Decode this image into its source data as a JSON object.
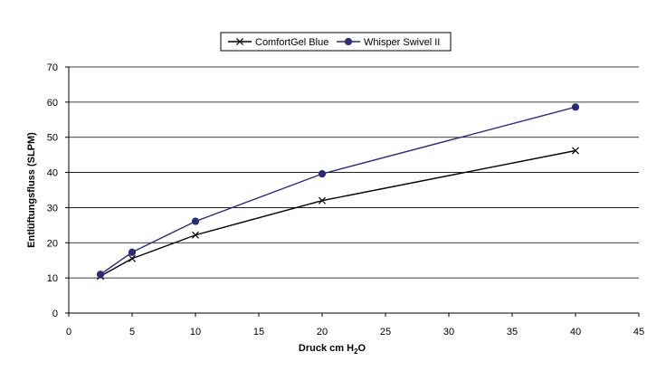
{
  "chart_data": {
    "type": "line",
    "title": "",
    "xlabel": "Druck cm H",
    "xlabel_subscript": "2",
    "xlabel_suffix": "O",
    "ylabel": "Entlüftungsfluss (SLPM)",
    "xlim": [
      0,
      45
    ],
    "ylim": [
      0,
      70
    ],
    "x_ticks": [
      0,
      5,
      10,
      15,
      20,
      25,
      30,
      35,
      40,
      45
    ],
    "y_ticks": [
      0,
      10,
      20,
      30,
      40,
      50,
      60,
      70
    ],
    "grid": "horizontal",
    "legend_position": "top-center",
    "series": [
      {
        "name": "ComfortGel Blue",
        "color": "#000000",
        "marker": "x",
        "x": [
          2.5,
          5,
          10,
          20,
          40
        ],
        "y": [
          10.5,
          15.5,
          22.2,
          32.0,
          46.2
        ]
      },
      {
        "name": "Whisper Swivel II",
        "color": "#2b2b7a",
        "marker": "circle",
        "x": [
          2.5,
          5,
          10,
          20,
          40
        ],
        "y": [
          11.0,
          17.3,
          26.1,
          39.6,
          58.6
        ]
      }
    ]
  }
}
